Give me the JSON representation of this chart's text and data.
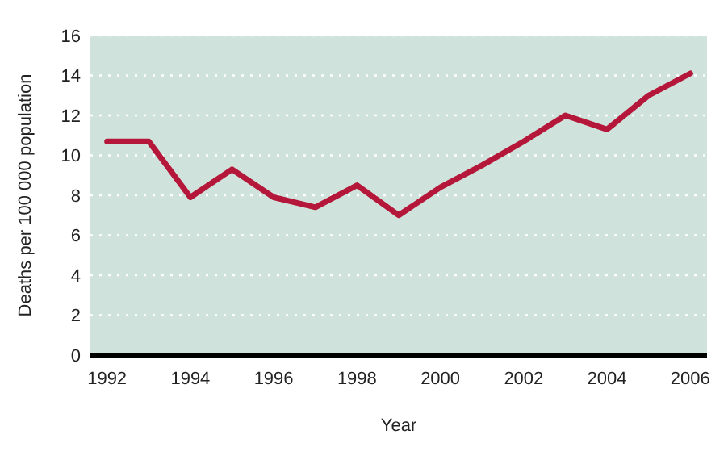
{
  "chart_data": {
    "type": "line",
    "xlabel": "Year",
    "ylabel": "Deaths per 100 000 population",
    "x": [
      1992,
      1993,
      1994,
      1995,
      1996,
      1997,
      1998,
      1999,
      2000,
      2001,
      2002,
      2003,
      2004,
      2005,
      2006
    ],
    "series": [
      {
        "color": "#b5173a",
        "values": [
          10.7,
          10.7,
          7.9,
          9.3,
          7.9,
          7.4,
          8.5,
          7.0,
          8.4,
          9.5,
          10.7,
          12.0,
          11.3,
          13.0,
          14.1
        ]
      }
    ],
    "xlim": [
      1991.6,
      2006.4
    ],
    "xticks": [
      1992,
      1994,
      1996,
      1998,
      2000,
      2002,
      2004,
      2006
    ],
    "ylim": [
      0,
      16
    ],
    "yticks": [
      0,
      2,
      4,
      6,
      8,
      10,
      12,
      14,
      16
    ],
    "grid": "y",
    "marker": "none",
    "line_style": "solid"
  }
}
